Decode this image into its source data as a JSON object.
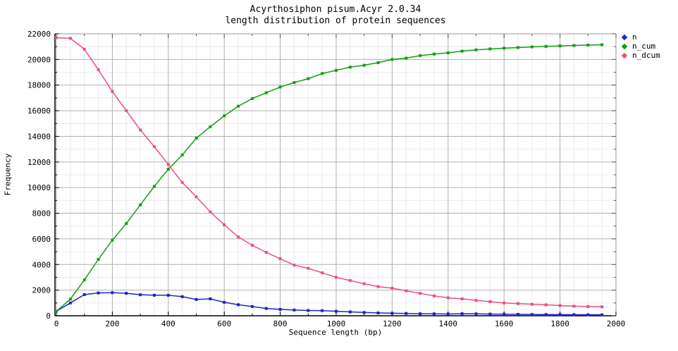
{
  "chart_data": {
    "type": "line",
    "title": "Acyrthosiphon pisum.Acyr 2.0.34",
    "subtitle": "length distribution of protein sequences",
    "xlabel": "Sequence length (bp)",
    "ylabel": "Frequency",
    "xlim": [
      0,
      2000
    ],
    "ylim": [
      0,
      22000
    ],
    "xtick_step": 200,
    "ytick_step": 2000,
    "minor_xtick_step": 50,
    "minor_ytick_step": 1000,
    "grid": true,
    "legend_position": "outside-top-right",
    "grid_major_color": "#b0b0b0",
    "grid_minor_color": "#ececec",
    "x": [
      0,
      50,
      100,
      150,
      200,
      250,
      300,
      350,
      400,
      450,
      500,
      550,
      600,
      650,
      700,
      750,
      800,
      850,
      900,
      950,
      1000,
      1050,
      1100,
      1150,
      1200,
      1250,
      1300,
      1350,
      1400,
      1450,
      1500,
      1550,
      1600,
      1650,
      1700,
      1750,
      1800,
      1850,
      1900,
      1950
    ],
    "series": [
      {
        "name": "n",
        "color": "#2222cc",
        "values": [
          350,
          1000,
          1650,
          1780,
          1800,
          1750,
          1640,
          1600,
          1600,
          1490,
          1270,
          1320,
          1050,
          860,
          720,
          570,
          500,
          450,
          410,
          400,
          350,
          300,
          260,
          220,
          200,
          180,
          160,
          150,
          140,
          160,
          150,
          130,
          120,
          110,
          100,
          95,
          90,
          85,
          80,
          75
        ]
      },
      {
        "name": "n_cum",
        "color": "#0fa00f",
        "values": [
          350,
          1300,
          2800,
          4400,
          5900,
          7200,
          8650,
          10100,
          11440,
          12550,
          13860,
          14750,
          15600,
          16350,
          16950,
          17400,
          17850,
          18200,
          18500,
          18900,
          19150,
          19400,
          19550,
          19750,
          20000,
          20100,
          20300,
          20420,
          20520,
          20650,
          20750,
          20820,
          20880,
          20930,
          20980,
          21020,
          21060,
          21090,
          21120,
          21150
        ]
      },
      {
        "name": "n_dcum",
        "color": "#ee4f7d",
        "values": [
          21700,
          21650,
          20800,
          19200,
          17500,
          16000,
          14500,
          13200,
          11800,
          10400,
          9280,
          8100,
          7100,
          6150,
          5500,
          4950,
          4450,
          3950,
          3700,
          3350,
          3000,
          2750,
          2500,
          2270,
          2150,
          1950,
          1750,
          1550,
          1400,
          1320,
          1200,
          1100,
          1000,
          950,
          900,
          850,
          800,
          750,
          720,
          700
        ]
      }
    ]
  }
}
